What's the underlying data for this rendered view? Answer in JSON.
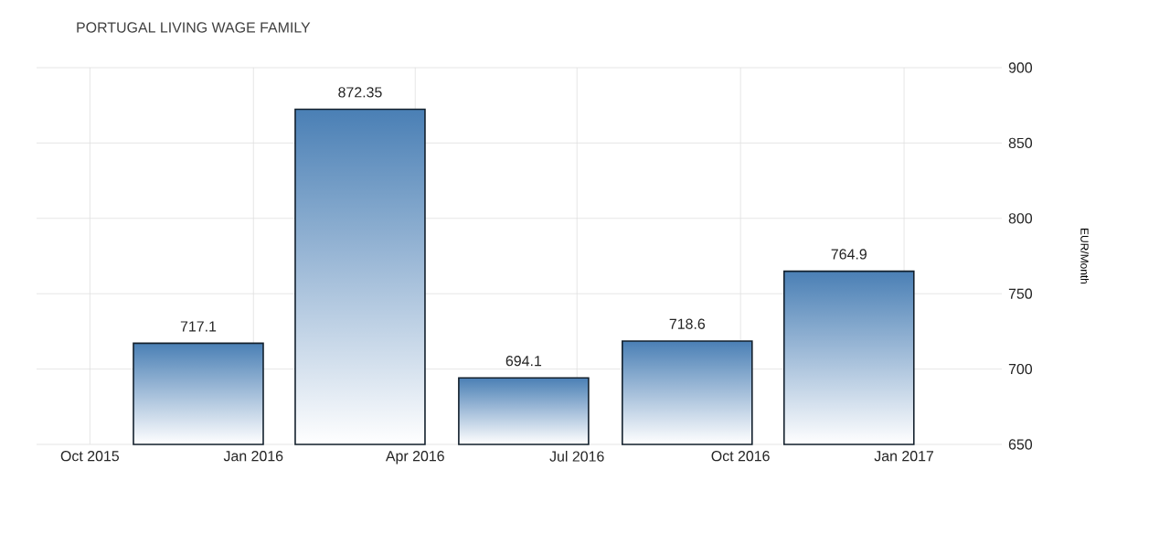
{
  "chart_data": {
    "type": "bar",
    "title": "PORTUGAL LIVING WAGE FAMILY",
    "ylabel": "EUR/Month",
    "x": [
      "2015-12-01",
      "2016-03-01",
      "2016-06-01",
      "2016-09-01",
      "2016-12-01"
    ],
    "values": [
      717.1,
      872.35,
      694.1,
      718.6,
      764.9
    ],
    "color": "#4a7fb5",
    "xlim": [
      "2015-09-01",
      "2017-02-25"
    ],
    "xticks": [
      {
        "value": "2015-10-01",
        "label": "Oct 2015"
      },
      {
        "value": "2016-01-01",
        "label": "Jan 2016"
      },
      {
        "value": "2016-04-01",
        "label": "Apr 2016"
      },
      {
        "value": "2016-07-01",
        "label": "Jul 2016"
      },
      {
        "value": "2016-10-01",
        "label": "Oct 2016"
      },
      {
        "value": "2017-01-01",
        "label": "Jan 2017"
      }
    ],
    "ylim": [
      650,
      900
    ],
    "yticks": [
      650,
      700,
      750,
      800,
      850,
      900
    ],
    "grid": true,
    "data_labels": true
  }
}
